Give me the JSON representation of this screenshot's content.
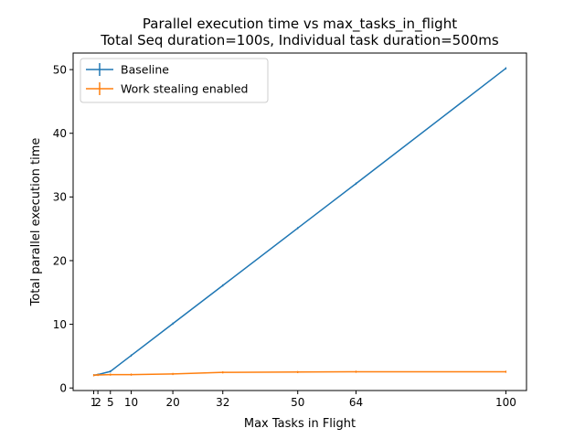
{
  "chart_data": {
    "type": "line",
    "title": "Parallel execution time vs max_tasks_in_flight",
    "subtitle": "Total Seq duration=100s, Individual task duration=500ms",
    "xlabel": "Max Tasks in Flight",
    "ylabel": "Total parallel execution time",
    "x": [
      1,
      2,
      5,
      10,
      20,
      32,
      50,
      64,
      100
    ],
    "xticks": [
      1,
      2,
      5,
      10,
      20,
      32,
      50,
      64,
      100
    ],
    "yticks": [
      0,
      10,
      20,
      30,
      40,
      50
    ],
    "xlim": [
      -3.95,
      104.95
    ],
    "ylim": [
      -0.4,
      52.6
    ],
    "grid": false,
    "legend_position": "upper-left",
    "series": [
      {
        "name": "Baseline",
        "color": "#1f77b4",
        "values": [
          2.0,
          2.1,
          2.6,
          5.1,
          10.1,
          16.1,
          25.1,
          32.1,
          50.2
        ]
      },
      {
        "name": "Work stealing enabled",
        "color": "#ff7f0e",
        "values": [
          2.0,
          2.05,
          2.1,
          2.1,
          2.2,
          2.45,
          2.5,
          2.55,
          2.55
        ]
      }
    ]
  }
}
